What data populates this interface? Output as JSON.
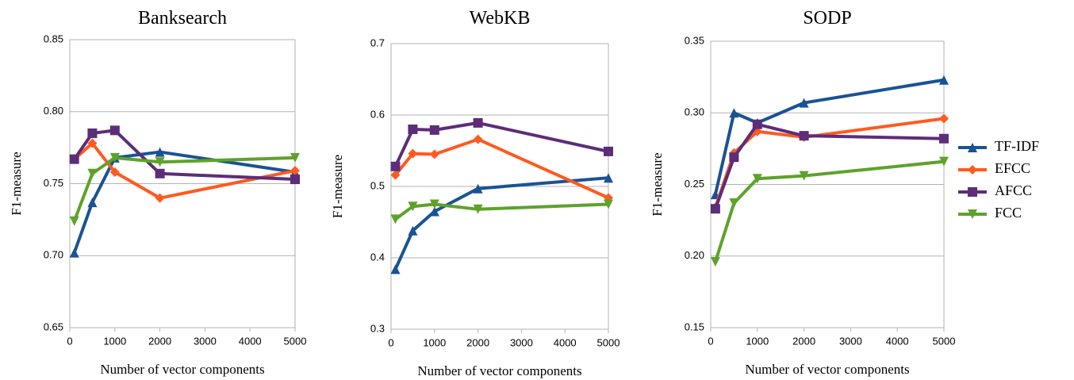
{
  "chart_data": [
    {
      "type": "line",
      "title": "Banksearch",
      "x_label": "Number of vector components",
      "y_label": "F1-measure",
      "x": [
        100,
        500,
        1000,
        2000,
        5000
      ],
      "xlim": [
        0,
        5000
      ],
      "xticks": [
        0,
        1000,
        2000,
        3000,
        4000,
        5000
      ],
      "ylim": [
        0.65,
        0.85
      ],
      "yticks": [
        0.65,
        {
          "value": 0.7,
          "label": "0.70"
        },
        0.75,
        {
          "value": 0.8,
          "label": "0.80"
        },
        0.85
      ],
      "grid": true,
      "series": [
        {
          "name": "TF-IDF",
          "color": "#1a5394",
          "marker": "triangle-up",
          "values": [
            0.702,
            0.737,
            0.768,
            0.772,
            0.758
          ]
        },
        {
          "name": "EFCC",
          "color": "#ff5a1f",
          "marker": "diamond",
          "values": [
            0.767,
            0.778,
            0.758,
            0.74,
            0.759
          ]
        },
        {
          "name": "AFCC",
          "color": "#5c2d7a",
          "marker": "square",
          "values": [
            0.767,
            0.785,
            0.787,
            0.757,
            0.753
          ]
        },
        {
          "name": "FCC",
          "color": "#5ea22a",
          "marker": "triangle-down",
          "values": [
            0.724,
            0.757,
            0.768,
            0.765,
            0.768
          ]
        }
      ]
    },
    {
      "type": "line",
      "title": "WebKB",
      "x_label": "Number of vector components",
      "y_label": "F1-measure",
      "x": [
        100,
        500,
        1000,
        2000,
        5000
      ],
      "xlim": [
        0,
        5000
      ],
      "xticks": [
        0,
        1000,
        2000,
        3000,
        4000,
        5000
      ],
      "ylim": [
        0.3,
        0.7
      ],
      "yticks": [
        0.3,
        0.4,
        0.5,
        0.6,
        0.7
      ],
      "grid": true,
      "series": [
        {
          "name": "TF-IDF",
          "color": "#1a5394",
          "marker": "triangle-up",
          "values": [
            0.384,
            0.438,
            0.465,
            0.497,
            0.512
          ]
        },
        {
          "name": "EFCC",
          "color": "#ff5a1f",
          "marker": "diamond",
          "values": [
            0.516,
            0.546,
            0.545,
            0.566,
            0.484
          ]
        },
        {
          "name": "AFCC",
          "color": "#5c2d7a",
          "marker": "square",
          "values": [
            0.528,
            0.58,
            0.579,
            0.589,
            0.549
          ]
        },
        {
          "name": "FCC",
          "color": "#5ea22a",
          "marker": "triangle-down",
          "values": [
            0.454,
            0.472,
            0.475,
            0.468,
            0.475
          ]
        }
      ]
    },
    {
      "type": "line",
      "title": "SODP",
      "x_label": "Number of vector components",
      "y_label": "F1-measure",
      "x": [
        100,
        500,
        1000,
        2000,
        5000
      ],
      "xlim": [
        0,
        5000
      ],
      "xticks": [
        0,
        1000,
        2000,
        3000,
        4000,
        5000
      ],
      "ylim": [
        0.15,
        0.35
      ],
      "yticks": [
        0.15,
        {
          "value": 0.2,
          "label": "0.20"
        },
        0.25,
        {
          "value": 0.3,
          "label": "0.30"
        },
        0.35
      ],
      "grid": true,
      "legend": "right",
      "series": [
        {
          "name": "TF-IDF",
          "color": "#1a5394",
          "marker": "triangle-up",
          "values": [
            0.243,
            0.3,
            0.293,
            0.307,
            0.323
          ]
        },
        {
          "name": "EFCC",
          "color": "#ff5a1f",
          "marker": "diamond",
          "values": [
            0.234,
            0.272,
            0.287,
            0.283,
            0.296
          ]
        },
        {
          "name": "AFCC",
          "color": "#5c2d7a",
          "marker": "square",
          "values": [
            0.233,
            0.269,
            0.292,
            0.284,
            0.282
          ]
        },
        {
          "name": "FCC",
          "color": "#5ea22a",
          "marker": "triangle-down",
          "values": [
            0.196,
            0.237,
            0.254,
            0.256,
            0.266
          ]
        }
      ]
    }
  ]
}
